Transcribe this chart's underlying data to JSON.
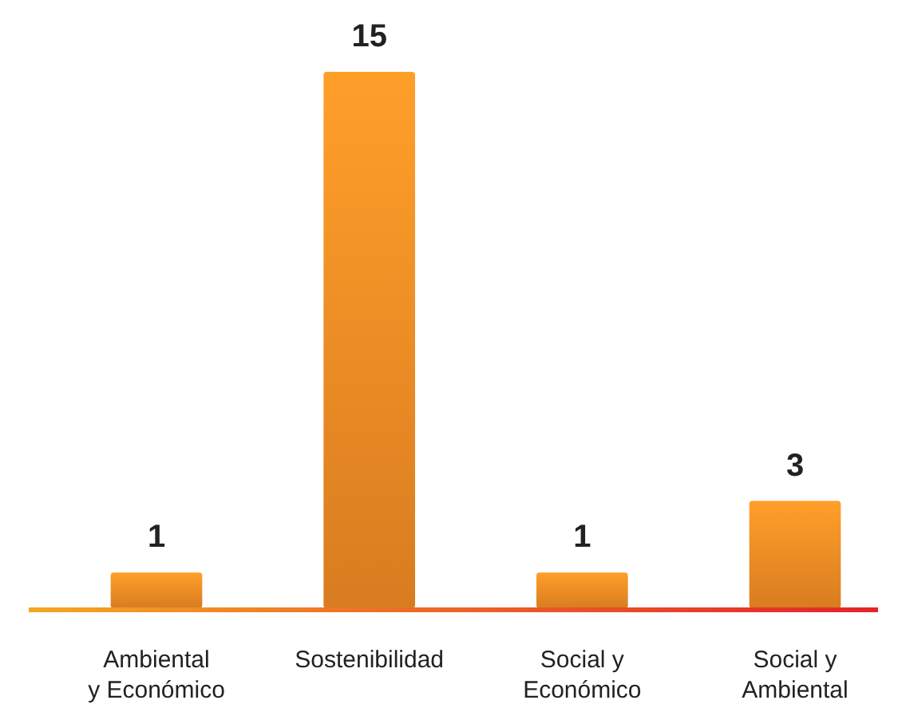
{
  "chart_data": {
    "type": "bar",
    "categories": [
      "Ambiental y Económico",
      "Sostenibilidad",
      "Social y Económico",
      "Social y Ambiental"
    ],
    "values": [
      1,
      15,
      1,
      3
    ],
    "color": "#f08a24",
    "data_labels": true
  }
}
